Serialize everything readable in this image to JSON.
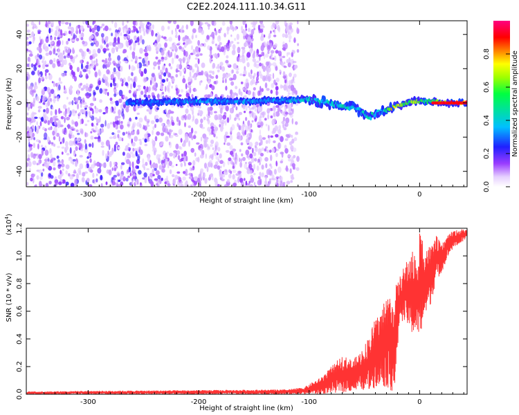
{
  "title": "C2E2.2024.111.10.34.G11",
  "chart_data": [
    {
      "type": "heatmap",
      "panel": "top",
      "xlabel": "Height of straight line (km)",
      "ylabel": "Frequency (Hz)",
      "xlim": [
        -356,
        43
      ],
      "ylim": [
        -49,
        48
      ],
      "xticks": [
        -300,
        -200,
        -100,
        0
      ],
      "yticks": [
        -40,
        -20,
        0,
        20,
        40
      ],
      "grid": false,
      "colorbar": {
        "label": "Normalized spectral amplitude",
        "range": [
          0.0,
          1.0
        ],
        "ticks": [
          "0.0",
          "0.2",
          "0.4",
          "0.6",
          "0.8"
        ],
        "colors": [
          "#ffffff",
          "#e6d0ff",
          "#9a3cff",
          "#2020ff",
          "#00c0ff",
          "#00ff60",
          "#a0ff00",
          "#ffff00",
          "#ff8000",
          "#ff0000",
          "#ff0080"
        ]
      },
      "noise_region": {
        "x": [
          -356,
          -110
        ],
        "amplitude": 0.15
      },
      "ridge": {
        "description_points": [
          {
            "x": -265,
            "y": 0,
            "amp": 0.3
          },
          {
            "x": -200,
            "y": 1,
            "amp": 0.35
          },
          {
            "x": -150,
            "y": 1,
            "amp": 0.35
          },
          {
            "x": -100,
            "y": 2,
            "amp": 0.4
          },
          {
            "x": -85,
            "y": 0,
            "amp": 0.45
          },
          {
            "x": -70,
            "y": -1,
            "amp": 0.45
          },
          {
            "x": -55,
            "y": -4,
            "amp": 0.4
          },
          {
            "x": -45,
            "y": -8,
            "amp": 0.45
          },
          {
            "x": -35,
            "y": -5,
            "amp": 0.4
          },
          {
            "x": -25,
            "y": -3,
            "amp": 0.75
          },
          {
            "x": -15,
            "y": -1,
            "amp": 0.6
          },
          {
            "x": -5,
            "y": 1,
            "amp": 0.7
          },
          {
            "x": 5,
            "y": 1,
            "amp": 0.55
          },
          {
            "x": 15,
            "y": 1,
            "amp": 0.65
          },
          {
            "x": 25,
            "y": 0,
            "amp": 0.9
          },
          {
            "x": 43,
            "y": 0,
            "amp": 0.9
          }
        ]
      }
    },
    {
      "type": "line",
      "panel": "bottom",
      "xlabel": "Height of straight line (km)",
      "ylabel": "SNR (10 * v/v)",
      "yscale_label": "(x10",
      "yscale_exp": "4",
      "xlim": [
        -356,
        43
      ],
      "ylim": [
        0,
        1.2
      ],
      "xticks": [
        -300,
        -200,
        -100,
        0
      ],
      "yticks": [
        "0.0",
        "0.2",
        "0.4",
        "0.6",
        "0.8",
        "1.0",
        "1.2"
      ],
      "grid": false,
      "series": [
        {
          "color": "#ff3333",
          "envelope": {
            "x": [
              -356,
              -300,
              -200,
              -120,
              -105,
              -90,
              -80,
              -70,
              -60,
              -50,
              -45,
              -40,
              -35,
              -30,
              -25,
              -22,
              -18,
              -10,
              -5,
              -2,
              0,
              5,
              10,
              15,
              20,
              25,
              30,
              35,
              43
            ],
            "low": [
              0.0,
              0.0,
              0.0,
              0.0,
              0.0,
              0.0,
              0.01,
              0.01,
              0.02,
              0.03,
              0.02,
              0.05,
              0.05,
              0.05,
              0.02,
              0.03,
              0.55,
              0.48,
              0.4,
              0.45,
              0.38,
              0.55,
              0.65,
              0.82,
              0.88,
              0.98,
              1.05,
              1.08,
              1.12
            ],
            "high": [
              0.02,
              0.025,
              0.03,
              0.035,
              0.05,
              0.12,
              0.2,
              0.28,
              0.25,
              0.35,
              0.45,
              0.55,
              0.6,
              0.75,
              0.7,
              0.78,
              0.85,
              1.0,
              1.05,
              0.9,
              1.2,
              1.1,
              1.07,
              1.15,
              1.08,
              1.15,
              1.18,
              1.19,
              1.2
            ]
          }
        }
      ]
    }
  ]
}
